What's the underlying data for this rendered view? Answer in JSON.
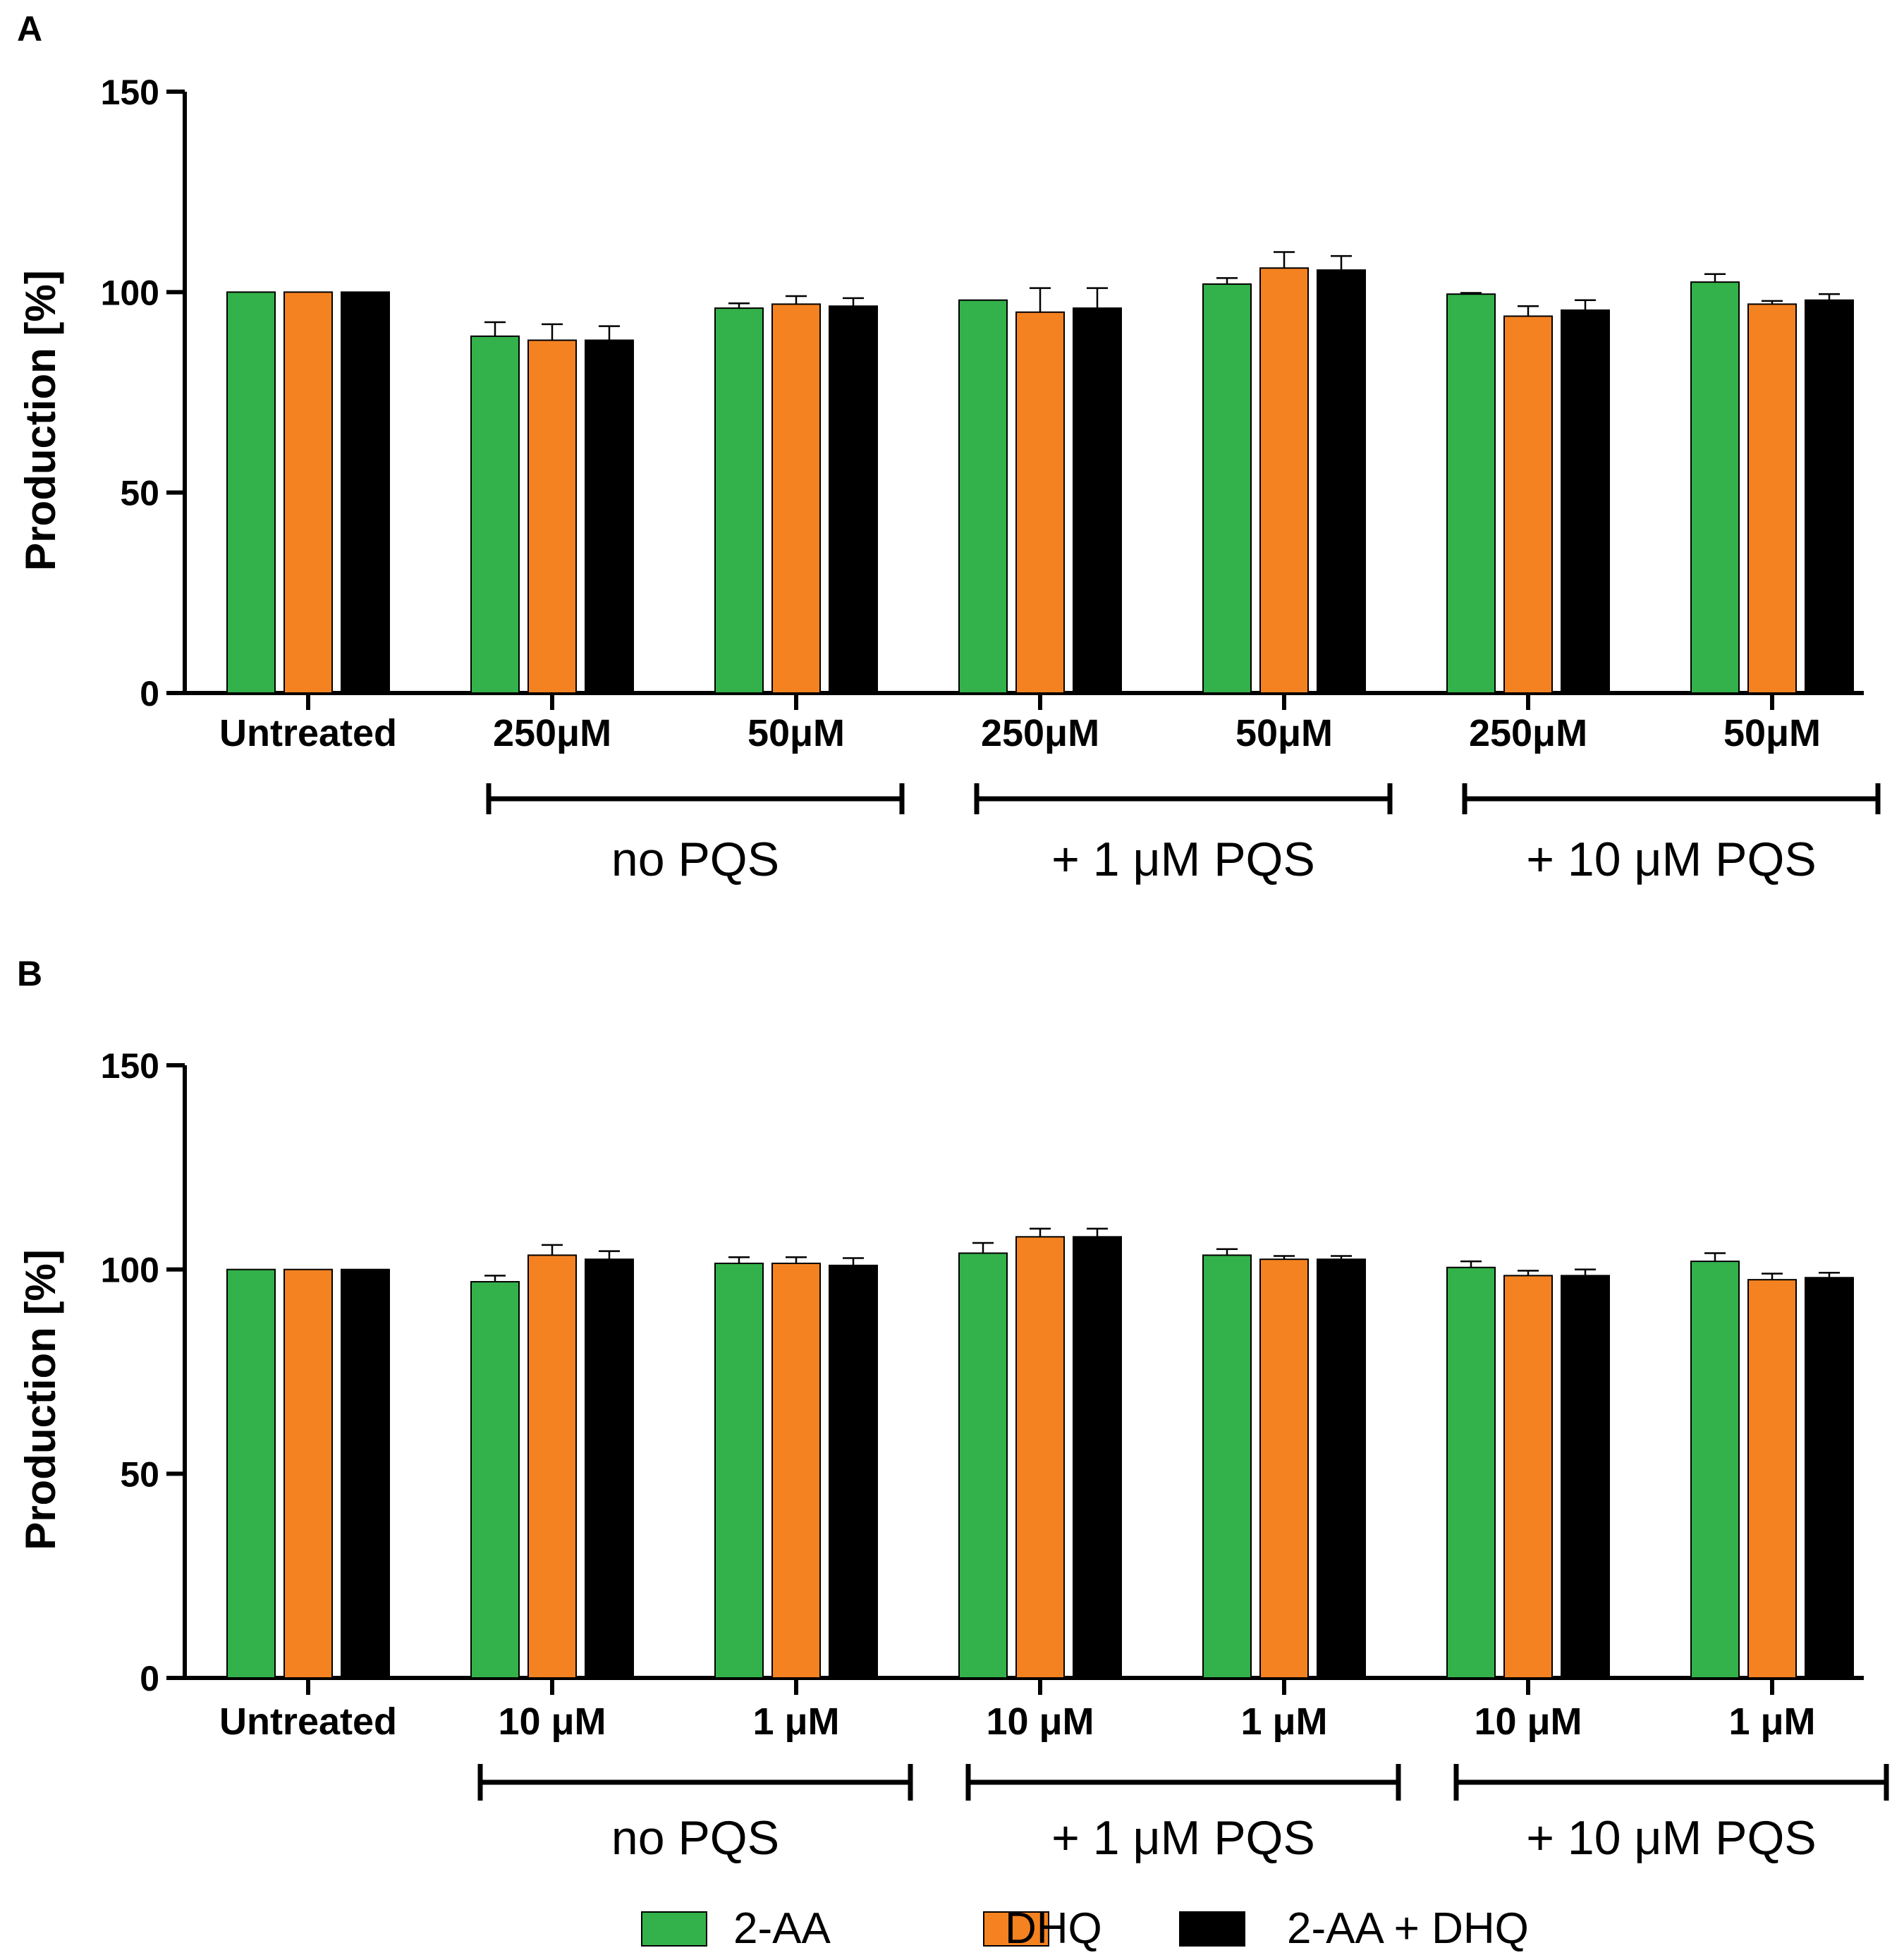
{
  "colors": {
    "2-AA": "#33b14a",
    "DHQ": "#f58220",
    "2-AA + DHQ": "#000000"
  },
  "legend": [
    "2-AA",
    "DHQ",
    "2-AA + DHQ"
  ],
  "chart_data": [
    {
      "panel": "A",
      "type": "bar",
      "ylabel": "Production [%]",
      "ylim": [
        0,
        150
      ],
      "yticks": [
        0,
        50,
        100,
        150
      ],
      "categories": [
        "Untreated",
        "250μM",
        "50μM",
        "250μM",
        "50μM",
        "250μM",
        "50μM"
      ],
      "groups": [
        {
          "label": "no PQS",
          "from": 1,
          "to": 2
        },
        {
          "label": "+ 1 μM PQS",
          "from": 3,
          "to": 4
        },
        {
          "label": "+ 10 μM PQS",
          "from": 5,
          "to": 6
        }
      ],
      "series": [
        {
          "name": "2-AA",
          "values": [
            100,
            89,
            96,
            98,
            102,
            99.5,
            102.5
          ],
          "errors": [
            0,
            3.5,
            1.2,
            0,
            1.5,
            0.3,
            2
          ]
        },
        {
          "name": "DHQ",
          "values": [
            100,
            88,
            97,
            95,
            106,
            94,
            97
          ],
          "errors": [
            0,
            4,
            2,
            6,
            4,
            2.5,
            0.8
          ]
        },
        {
          "name": "2-AA + DHQ",
          "values": [
            100,
            88,
            96.5,
            96,
            105.5,
            95.5,
            98
          ],
          "errors": [
            0,
            3.5,
            2,
            5,
            3.5,
            2.5,
            1.5
          ]
        }
      ]
    },
    {
      "panel": "B",
      "type": "bar",
      "ylabel": "Production [%]",
      "ylim": [
        0,
        150
      ],
      "yticks": [
        0,
        50,
        100,
        150
      ],
      "categories": [
        "Untreated",
        "10 μM",
        "1 μM",
        "10 μM",
        "1 μM",
        "10 μM",
        "1 μM"
      ],
      "groups": [
        {
          "label": "no PQS",
          "from": 1,
          "to": 2
        },
        {
          "label": "+ 1 μM PQS",
          "from": 3,
          "to": 4
        },
        {
          "label": "+ 10 μM PQS",
          "from": 5,
          "to": 6
        }
      ],
      "series": [
        {
          "name": "2-AA",
          "values": [
            100,
            97,
            101.5,
            104,
            103.5,
            100.5,
            102
          ],
          "errors": [
            0,
            1.5,
            1.5,
            2.5,
            1.5,
            1.5,
            2
          ]
        },
        {
          "name": "DHQ",
          "values": [
            100,
            103.5,
            101.5,
            108,
            102.5,
            98.5,
            97.5
          ],
          "errors": [
            0,
            2.5,
            1.5,
            2,
            0.8,
            1.2,
            1.5
          ]
        },
        {
          "name": "2-AA + DHQ",
          "values": [
            100,
            102.5,
            101,
            108,
            102.5,
            98.5,
            98
          ],
          "errors": [
            0,
            2,
            1.8,
            2,
            0.8,
            1.5,
            1.2
          ]
        }
      ]
    }
  ]
}
